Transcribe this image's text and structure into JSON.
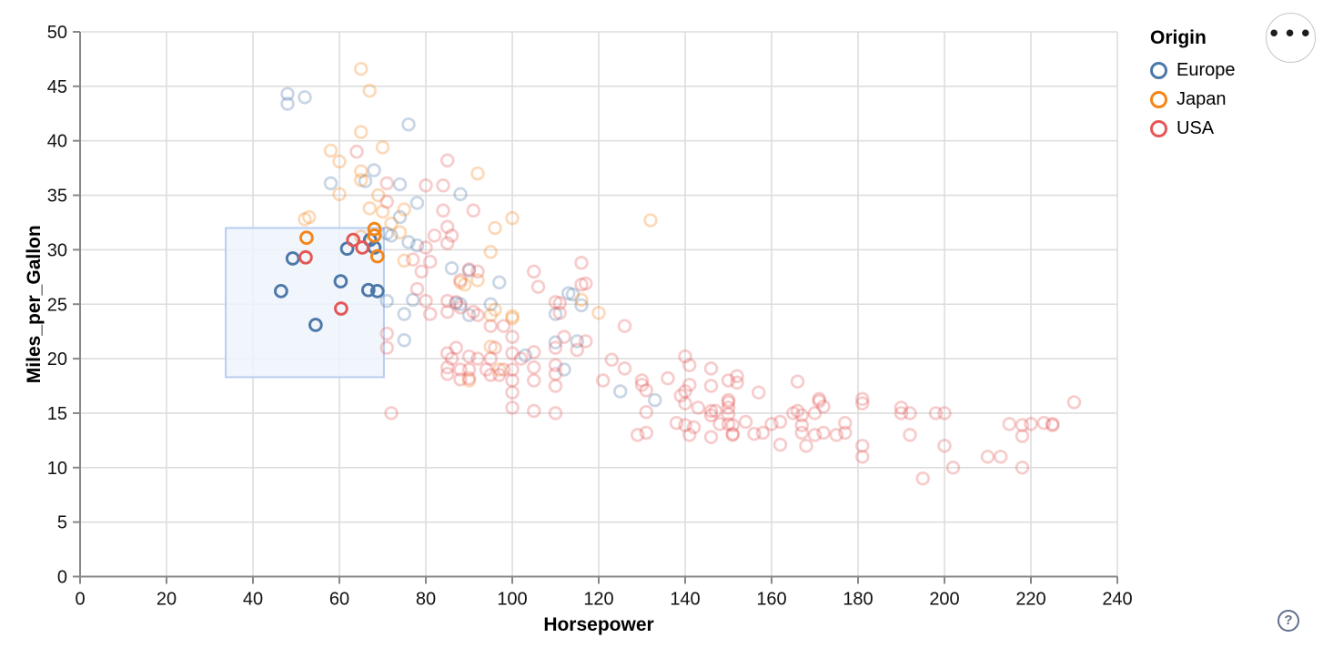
{
  "controls": {
    "menu_icon_glyph": "•••",
    "help_icon_glyph": "?"
  },
  "chart_data": {
    "type": "scatter",
    "xlabel": "Horsepower",
    "ylabel": "Miles_per_Gallon",
    "xlim": [
      0,
      240
    ],
    "ylim": [
      0,
      50
    ],
    "xticks": [
      0,
      20,
      40,
      60,
      80,
      100,
      120,
      140,
      160,
      180,
      200,
      220,
      240
    ],
    "yticks": [
      0,
      5,
      10,
      15,
      20,
      25,
      30,
      35,
      40,
      45,
      50
    ],
    "grid": true,
    "grid_color": "#dddddd",
    "axis_color": "#888888",
    "legend": {
      "title": "Origin",
      "position": "top-right",
      "entries": [
        {
          "label": "Europe",
          "color": "#4c78a8"
        },
        {
          "label": "Japan",
          "color": "#f58518"
        },
        {
          "label": "USA",
          "color": "#e45756"
        }
      ]
    },
    "brush_selection": {
      "x_range": [
        33.7,
        70.3
      ],
      "y_range": [
        18.3,
        32.0
      ],
      "fill": "#eef3fb",
      "stroke": "#b9cdf0"
    },
    "unselected_opacity": 0.3,
    "series": [
      {
        "name": "Europe",
        "color": "#4c78a8",
        "selected": [
          [
            46.5,
            26.2
          ],
          [
            49.2,
            29.2
          ],
          [
            54.5,
            23.1
          ],
          [
            60.3,
            27.1
          ],
          [
            61.8,
            30.1
          ],
          [
            67.1,
            30.9
          ],
          [
            68.1,
            30.2
          ],
          [
            66.7,
            26.3
          ],
          [
            68.8,
            26.2
          ]
        ],
        "unselected": [
          [
            48,
            44.3
          ],
          [
            48,
            43.4
          ],
          [
            52,
            44
          ],
          [
            76,
            41.5
          ],
          [
            58,
            36.1
          ],
          [
            68,
            37.3
          ],
          [
            66,
            36.3
          ],
          [
            74,
            36
          ],
          [
            78,
            34.3
          ],
          [
            74,
            33
          ],
          [
            72,
            31.3
          ],
          [
            78,
            30.4
          ],
          [
            71,
            31.5
          ],
          [
            76,
            30.7
          ],
          [
            88,
            35.1
          ],
          [
            77,
            25.4
          ],
          [
            103,
            20.3
          ],
          [
            110,
            21.5
          ],
          [
            112,
            19
          ],
          [
            115,
            21.6
          ],
          [
            87,
            25.1
          ],
          [
            90,
            24
          ],
          [
            95,
            25
          ],
          [
            113,
            26
          ],
          [
            133,
            16.2
          ],
          [
            125,
            17
          ],
          [
            71,
            25.3
          ],
          [
            110,
            24.1
          ],
          [
            114,
            25.9
          ],
          [
            116,
            24.9
          ],
          [
            90,
            28.1
          ],
          [
            88,
            25
          ],
          [
            97,
            27
          ],
          [
            86,
            28.3
          ],
          [
            75,
            24.1
          ],
          [
            75,
            21.7
          ]
        ]
      },
      {
        "name": "Japan",
        "color": "#f58518",
        "selected": [
          [
            52.4,
            31.1
          ],
          [
            68.1,
            31.9
          ],
          [
            68.1,
            31.3
          ],
          [
            68.8,
            29.4
          ]
        ],
        "unselected": [
          [
            65,
            46.6
          ],
          [
            67,
            44.6
          ],
          [
            65,
            40.8
          ],
          [
            70,
            39.4
          ],
          [
            58,
            39.1
          ],
          [
            60,
            38.1
          ],
          [
            65,
            37.2
          ],
          [
            60,
            35.1
          ],
          [
            70,
            33.5
          ],
          [
            67,
            33.8
          ],
          [
            53,
            33
          ],
          [
            52,
            32.8
          ],
          [
            65,
            31.2
          ],
          [
            69,
            35
          ],
          [
            72,
            32.4
          ],
          [
            75,
            33.7
          ],
          [
            74,
            31.6
          ],
          [
            96,
            32
          ],
          [
            95,
            29.8
          ],
          [
            92,
            27.2
          ],
          [
            88,
            27
          ],
          [
            89,
            26.8
          ],
          [
            95,
            24
          ],
          [
            96,
            24.5
          ],
          [
            97,
            19
          ],
          [
            90,
            18
          ],
          [
            100,
            23.7
          ],
          [
            100,
            32.9
          ],
          [
            132,
            32.7
          ],
          [
            116,
            25.4
          ],
          [
            120,
            24.2
          ],
          [
            100,
            23.9
          ],
          [
            95,
            21.1
          ],
          [
            75,
            29
          ],
          [
            92,
            37
          ],
          [
            65,
            36.4
          ]
        ]
      },
      {
        "name": "USA",
        "color": "#e45756",
        "selected": [
          [
            52.2,
            29.3
          ],
          [
            60.4,
            24.6
          ],
          [
            63.2,
            30.9
          ],
          [
            65.3,
            30.2
          ]
        ],
        "unselected": [
          [
            64,
            39
          ],
          [
            85,
            38.2
          ],
          [
            80,
            35.9
          ],
          [
            84,
            35.9
          ],
          [
            71,
            36.1
          ],
          [
            84,
            33.6
          ],
          [
            91,
            33.6
          ],
          [
            86,
            31.3
          ],
          [
            82,
            31.3
          ],
          [
            85,
            32.1
          ],
          [
            80,
            30.2
          ],
          [
            85,
            30.6
          ],
          [
            77,
            29.1
          ],
          [
            81,
            28.9
          ],
          [
            79,
            28
          ],
          [
            90,
            28.2
          ],
          [
            92,
            28
          ],
          [
            88,
            27.2
          ],
          [
            71,
            34.4
          ],
          [
            71,
            22.3
          ],
          [
            71,
            21
          ],
          [
            105,
            28
          ],
          [
            106,
            26.6
          ],
          [
            116,
            28.8
          ],
          [
            116,
            26.8
          ],
          [
            111,
            25.1
          ],
          [
            88,
            24.7
          ],
          [
            87,
            25.2
          ],
          [
            85,
            25.3
          ],
          [
            80,
            25.3
          ],
          [
            78,
            26.4
          ],
          [
            91,
            24.3
          ],
          [
            85,
            24.3
          ],
          [
            81,
            24.1
          ],
          [
            110,
            25.2
          ],
          [
            111,
            24.2
          ],
          [
            117,
            26.9
          ],
          [
            85,
            20.5
          ],
          [
            85,
            19.2
          ],
          [
            85,
            18.6
          ],
          [
            86,
            20
          ],
          [
            87,
            21
          ],
          [
            88,
            19
          ],
          [
            88,
            18.1
          ],
          [
            90,
            19
          ],
          [
            90,
            20.2
          ],
          [
            90,
            18.2
          ],
          [
            92,
            20
          ],
          [
            94,
            19
          ],
          [
            95,
            20
          ],
          [
            95,
            18.5
          ],
          [
            96,
            21
          ],
          [
            97,
            18.5
          ],
          [
            98,
            19
          ],
          [
            100,
            19
          ],
          [
            100,
            20.5
          ],
          [
            100,
            18
          ],
          [
            100,
            16.9
          ],
          [
            102,
            20
          ],
          [
            105,
            18
          ],
          [
            105,
            19.2
          ],
          [
            105,
            20.6
          ],
          [
            110,
            18.6
          ],
          [
            110,
            19.4
          ],
          [
            110,
            17.5
          ],
          [
            110,
            21
          ],
          [
            112,
            22
          ],
          [
            115,
            20.8
          ],
          [
            100,
            22
          ],
          [
            98,
            23
          ],
          [
            95,
            23
          ],
          [
            92,
            24
          ],
          [
            100,
            15.5
          ],
          [
            105,
            15.2
          ],
          [
            110,
            15
          ],
          [
            72,
            15
          ],
          [
            117,
            21.6
          ],
          [
            123,
            19.9
          ],
          [
            126,
            19.1
          ],
          [
            140,
            20.2
          ],
          [
            141,
            19.4
          ],
          [
            146,
            19.1
          ],
          [
            121,
            18
          ],
          [
            136,
            18.2
          ],
          [
            152,
            18.4
          ],
          [
            152,
            17.8
          ],
          [
            130,
            17.6
          ],
          [
            131,
            17.1
          ],
          [
            141,
            17.6
          ],
          [
            146,
            17.5
          ],
          [
            139,
            16.6
          ],
          [
            140,
            15.9
          ],
          [
            143,
            15.5
          ],
          [
            157,
            16.9
          ],
          [
            166,
            17.9
          ],
          [
            171,
            16.1
          ],
          [
            166,
            15.2
          ],
          [
            146,
            15.2
          ],
          [
            126,
            23
          ],
          [
            131,
            15.1
          ],
          [
            129,
            13
          ],
          [
            131,
            13.2
          ],
          [
            138,
            14.1
          ],
          [
            140,
            13.9
          ],
          [
            142,
            13.7
          ],
          [
            141,
            13
          ],
          [
            146,
            12.8
          ],
          [
            146,
            14.8
          ],
          [
            147,
            15.2
          ],
          [
            148,
            14
          ],
          [
            150,
            16.2
          ],
          [
            150,
            15.5
          ],
          [
            150,
            14.9
          ],
          [
            150,
            14
          ],
          [
            151,
            13.9
          ],
          [
            151,
            13.1
          ],
          [
            151,
            13
          ],
          [
            154,
            14.2
          ],
          [
            156,
            13.1
          ],
          [
            158,
            13.2
          ],
          [
            162,
            14.2
          ],
          [
            162,
            12.1
          ],
          [
            167,
            14.8
          ],
          [
            167,
            13.9
          ],
          [
            167,
            13.2
          ],
          [
            168,
            12
          ],
          [
            171,
            16.3
          ],
          [
            172,
            15.6
          ],
          [
            172,
            13.2
          ],
          [
            177,
            14.1
          ],
          [
            177,
            13.2
          ],
          [
            181,
            16.3
          ],
          [
            181,
            15.9
          ],
          [
            181,
            12
          ],
          [
            181,
            11
          ],
          [
            190,
            15.5
          ],
          [
            192,
            15
          ],
          [
            192,
            13
          ],
          [
            200,
            15
          ],
          [
            200,
            12
          ],
          [
            202,
            10
          ],
          [
            195,
            9
          ],
          [
            210,
            11
          ],
          [
            213,
            11
          ],
          [
            218,
            10
          ],
          [
            218,
            13.9
          ],
          [
            218,
            12.9
          ],
          [
            223,
            14.1
          ],
          [
            225,
            13.9
          ],
          [
            230,
            16
          ],
          [
            130,
            18
          ],
          [
            140,
            17
          ],
          [
            150,
            18
          ],
          [
            150,
            16
          ],
          [
            165,
            15
          ],
          [
            170,
            15
          ],
          [
            160,
            14
          ],
          [
            190,
            15
          ],
          [
            198,
            15
          ],
          [
            220,
            14
          ],
          [
            215,
            14
          ],
          [
            225,
            14
          ],
          [
            170,
            13
          ],
          [
            175,
            13
          ]
        ]
      }
    ]
  }
}
